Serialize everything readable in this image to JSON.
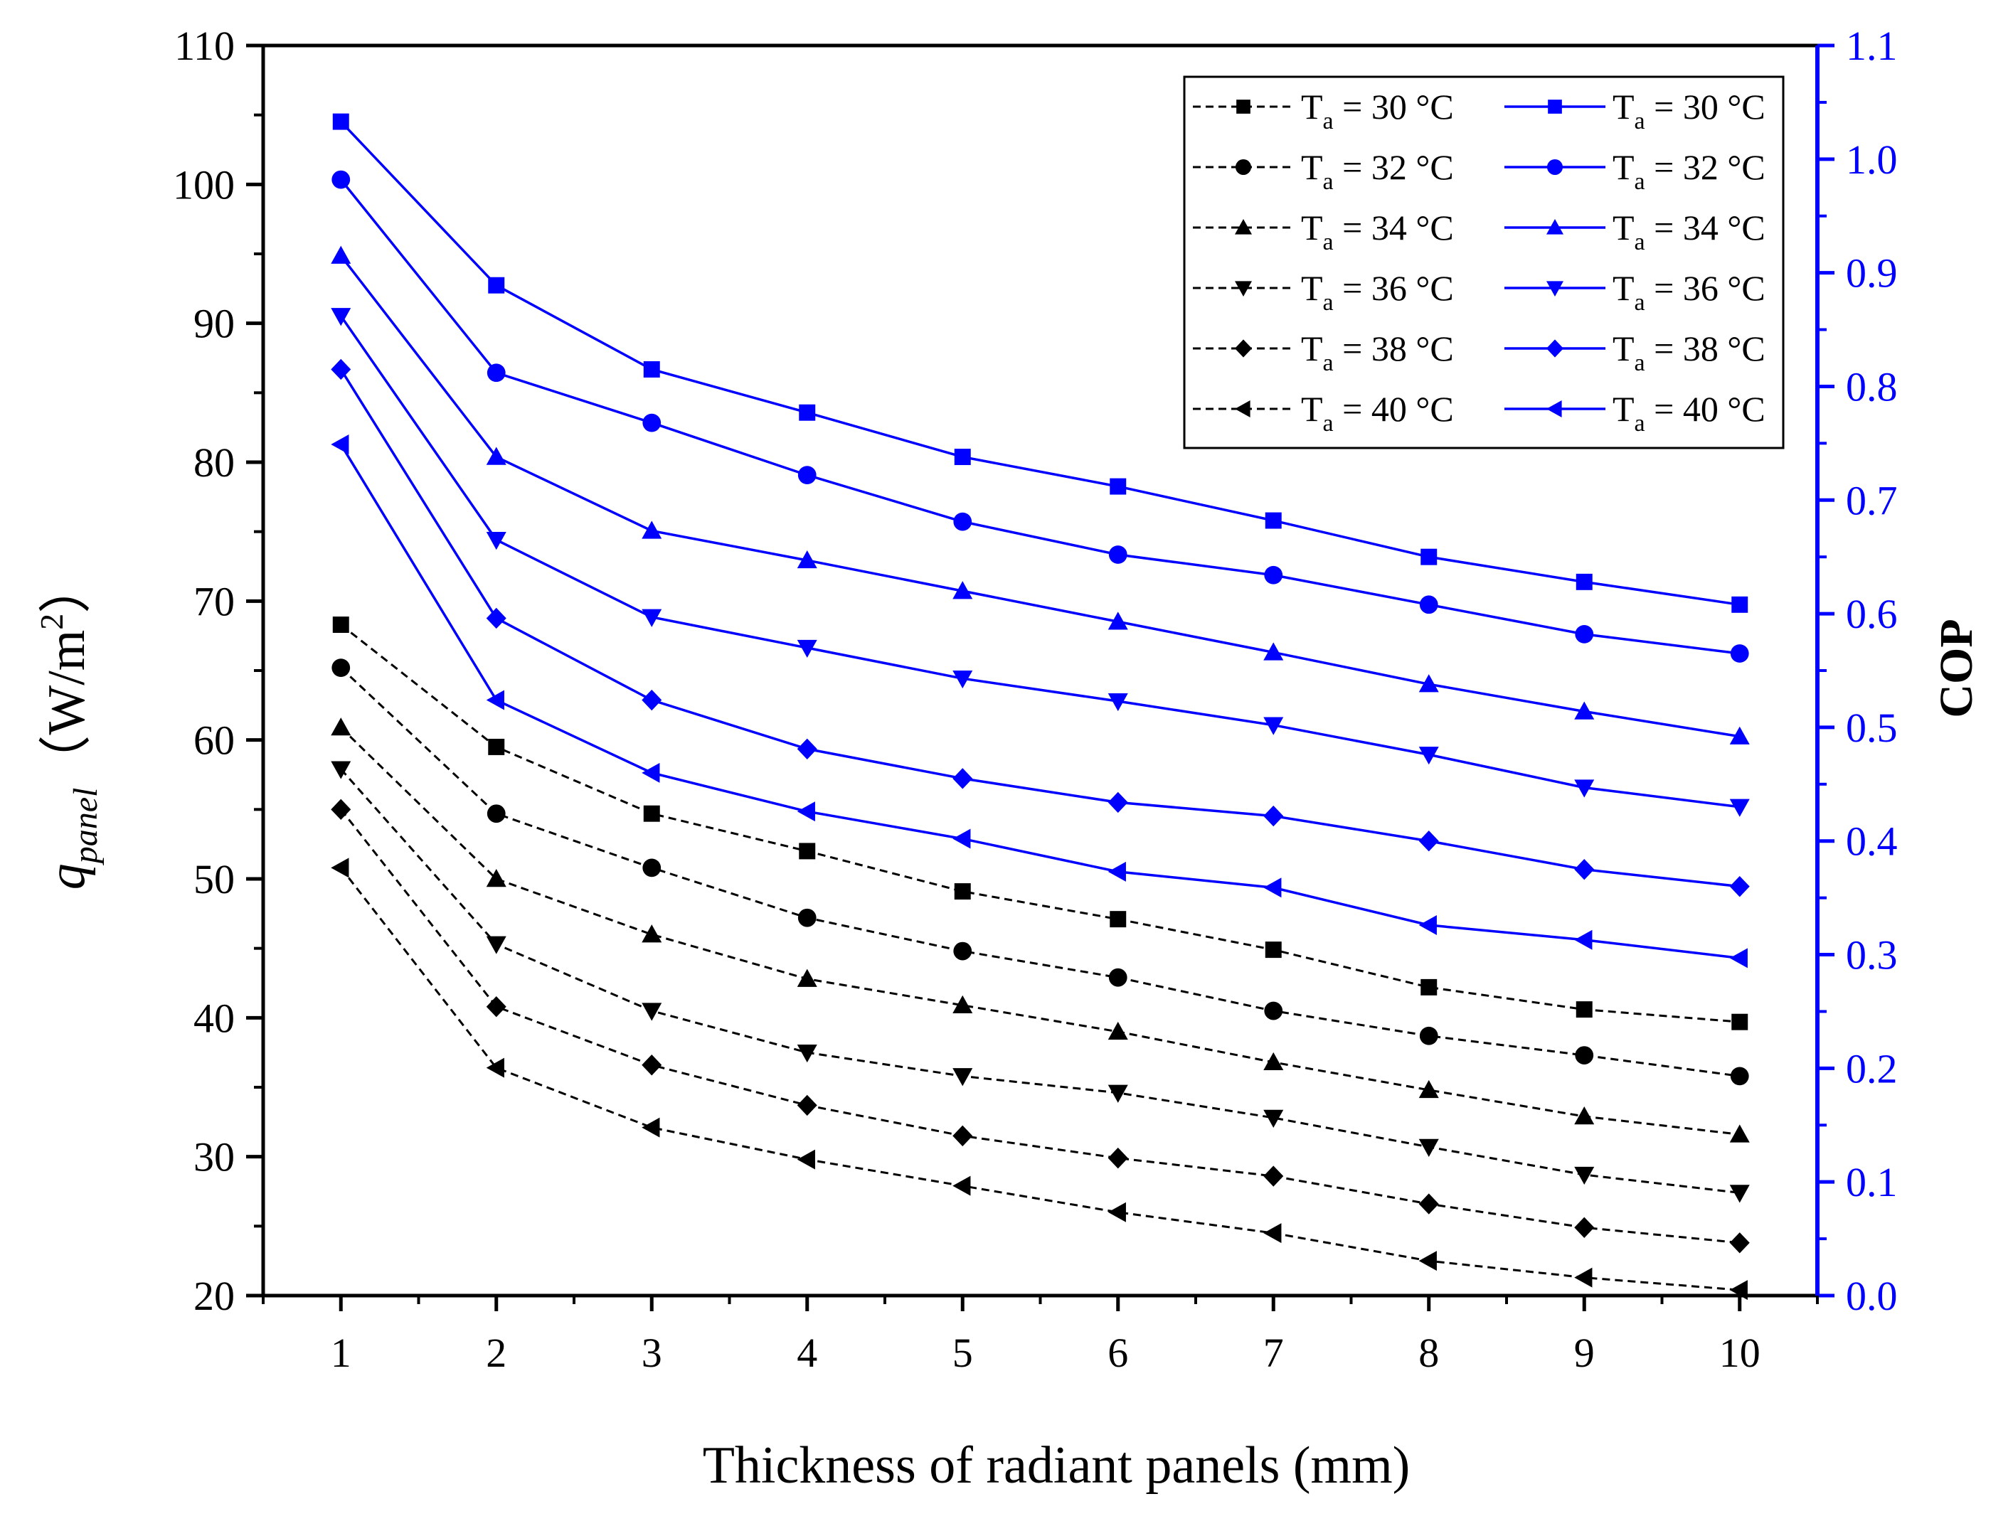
{
  "chart_data": {
    "type": "line",
    "xlabel": "Thickness of radiant panels (mm)",
    "x": [
      1,
      2,
      3,
      4,
      5,
      6,
      7,
      8,
      9,
      10
    ],
    "left_axis": {
      "label_prefix": "q",
      "label_subscript": "panel",
      "label_unit": "（W/m",
      "label_sup": "2",
      "label_close": "）",
      "ylim": [
        20,
        110
      ],
      "ticks": [
        20,
        30,
        40,
        50,
        60,
        70,
        80,
        90,
        100,
        110
      ],
      "color": "#000000"
    },
    "right_axis": {
      "label": "COP",
      "ylim": [
        0.0,
        1.1
      ],
      "ticks": [
        "0.0",
        "0.1",
        "0.2",
        "0.3",
        "0.4",
        "0.5",
        "0.6",
        "0.7",
        "0.8",
        "0.9",
        "1.0",
        "1.1"
      ],
      "color": "#0000ff"
    },
    "q_series": [
      {
        "name": "T_a = 30 °C",
        "marker": "square",
        "values": [
          68.3,
          59.5,
          54.7,
          52.0,
          49.1,
          47.1,
          44.9,
          42.2,
          40.6,
          39.7
        ]
      },
      {
        "name": "T_a = 32 °C",
        "marker": "circle",
        "values": [
          65.2,
          54.7,
          50.8,
          47.2,
          44.8,
          42.9,
          40.5,
          38.7,
          37.3,
          35.8
        ]
      },
      {
        "name": "T_a = 34 °C",
        "marker": "triangle-up",
        "values": [
          60.9,
          50.0,
          46.0,
          42.8,
          40.9,
          39.0,
          36.8,
          34.8,
          32.9,
          31.6
        ]
      },
      {
        "name": "T_a = 36 °C",
        "marker": "triangle-down",
        "values": [
          57.9,
          45.3,
          40.5,
          37.5,
          35.8,
          34.6,
          32.8,
          30.7,
          28.7,
          27.4
        ]
      },
      {
        "name": "T_a = 38 °C",
        "marker": "diamond",
        "values": [
          55.0,
          40.8,
          36.6,
          33.7,
          31.5,
          29.9,
          28.6,
          26.6,
          24.9,
          23.8
        ]
      },
      {
        "name": "T_a = 40 °C",
        "marker": "triangle-left",
        "values": [
          50.8,
          36.4,
          32.1,
          29.8,
          27.9,
          26.0,
          24.5,
          22.5,
          21.3,
          20.4
        ]
      }
    ],
    "cop_series": [
      {
        "name": "T_a = 30 °C",
        "marker": "square",
        "values": [
          1.033,
          0.889,
          0.815,
          0.777,
          0.738,
          0.712,
          0.682,
          0.65,
          0.628,
          0.608
        ]
      },
      {
        "name": "T_a = 32 °C",
        "marker": "circle",
        "values": [
          0.982,
          0.812,
          0.768,
          0.722,
          0.681,
          0.652,
          0.634,
          0.608,
          0.582,
          0.565
        ]
      },
      {
        "name": "T_a = 34 °C",
        "marker": "triangle-up",
        "values": [
          0.915,
          0.738,
          0.673,
          0.647,
          0.62,
          0.593,
          0.566,
          0.538,
          0.514,
          0.492
        ]
      },
      {
        "name": "T_a = 36 °C",
        "marker": "triangle-down",
        "values": [
          0.862,
          0.665,
          0.597,
          0.57,
          0.543,
          0.523,
          0.502,
          0.476,
          0.447,
          0.43
        ]
      },
      {
        "name": "T_a = 38 °C",
        "marker": "diamond",
        "values": [
          0.815,
          0.596,
          0.524,
          0.481,
          0.455,
          0.434,
          0.422,
          0.4,
          0.375,
          0.36
        ]
      },
      {
        "name": "T_a = 40 °C",
        "marker": "triangle-left",
        "values": [
          0.749,
          0.524,
          0.46,
          0.426,
          0.402,
          0.373,
          0.359,
          0.326,
          0.313,
          0.297
        ]
      }
    ],
    "legend": {
      "placement": "top-right",
      "entries": [
        {
          "prefix": "T",
          "sub": "a",
          "suffix": " = 30 °C",
          "marker": "square"
        },
        {
          "prefix": "T",
          "sub": "a",
          "suffix": " = 32 °C",
          "marker": "circle"
        },
        {
          "prefix": "T",
          "sub": "a",
          "suffix": " = 34 °C",
          "marker": "triangle-up"
        },
        {
          "prefix": "T",
          "sub": "a",
          "suffix": " = 36 °C",
          "marker": "triangle-down"
        },
        {
          "prefix": "T",
          "sub": "a",
          "suffix": " = 38 °C",
          "marker": "diamond"
        },
        {
          "prefix": "T",
          "sub": "a",
          "suffix": " = 40 °C",
          "marker": "triangle-left"
        }
      ]
    },
    "colors": {
      "q": "#000000",
      "cop": "#0000ff"
    },
    "grid": false
  }
}
